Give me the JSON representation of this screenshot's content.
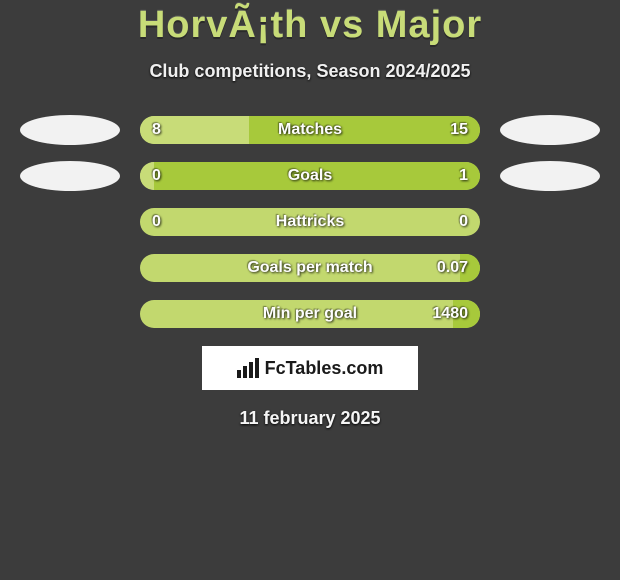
{
  "header": {
    "title": "HorvÃ¡th vs Major",
    "subtitle": "Club competitions, Season 2024/2025",
    "title_color": "#c8dc78"
  },
  "colors": {
    "left_fill": "#c8dc78",
    "right_fill": "#a7c93b",
    "neutral_fill": "#c2d86e",
    "background": "#3c3c3c",
    "ellipse_present": "#f2f2f2"
  },
  "attribution": {
    "text": "FcTables.com"
  },
  "footer": {
    "date": "11 february 2025"
  },
  "stats": [
    {
      "label": "Matches",
      "left_value": "8",
      "right_value": "15",
      "left_pct": 32,
      "right_pct": 68,
      "left_ellipse": true,
      "right_ellipse": true
    },
    {
      "label": "Goals",
      "left_value": "0",
      "right_value": "1",
      "left_pct": 4,
      "right_pct": 96,
      "left_ellipse": true,
      "right_ellipse": true
    },
    {
      "label": "Hattricks",
      "left_value": "0",
      "right_value": "0",
      "left_pct": 0,
      "right_pct": 0,
      "left_ellipse": false,
      "right_ellipse": false
    },
    {
      "label": "Goals per match",
      "left_value": "",
      "right_value": "0.07",
      "left_pct": 0,
      "right_pct": 6,
      "left_ellipse": false,
      "right_ellipse": false
    },
    {
      "label": "Min per goal",
      "left_value": "",
      "right_value": "1480",
      "left_pct": 0,
      "right_pct": 8,
      "left_ellipse": false,
      "right_ellipse": false
    }
  ]
}
